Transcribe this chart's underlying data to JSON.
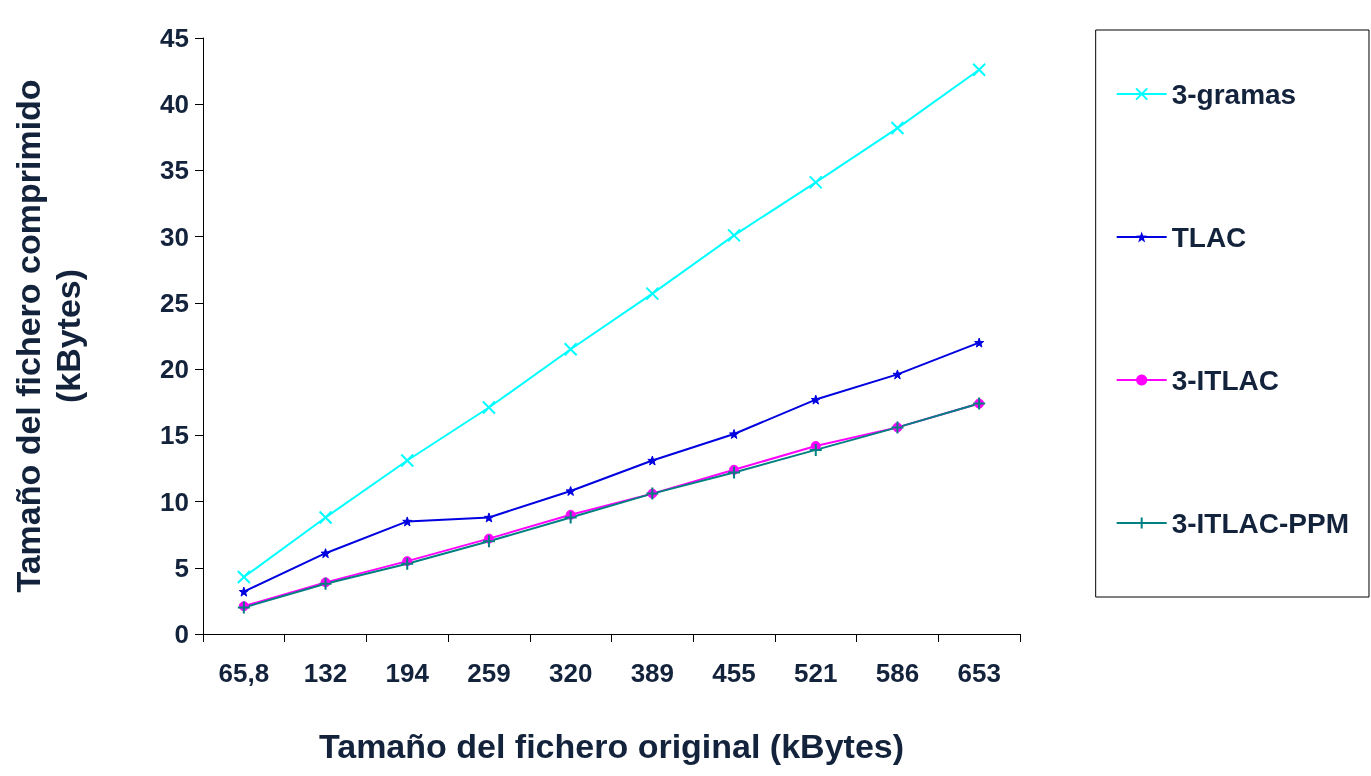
{
  "chart_data": {
    "type": "line",
    "xlabel": "Tamaño del fichero original (kBytes)",
    "ylabel": "Tamaño del fichero comprimido\n(kBytes)",
    "categories": [
      "65,8",
      "132",
      "194",
      "259",
      "320",
      "389",
      "455",
      "521",
      "586",
      "653"
    ],
    "series": [
      {
        "name": "3-gramas",
        "color": "#00ffff",
        "marker": "cross",
        "values": [
          4.3,
          8.8,
          13.1,
          17.1,
          21.5,
          25.7,
          30.1,
          34.1,
          38.2,
          42.6
        ]
      },
      {
        "name": "TLAC",
        "color": "#0000e0",
        "marker": "star",
        "values": [
          3.2,
          6.1,
          8.5,
          8.8,
          10.8,
          13.1,
          15.1,
          17.7,
          19.6,
          22.0
        ]
      },
      {
        "name": "3-ITLAC",
        "color": "#ff00ff",
        "marker": "circle",
        "values": [
          2.1,
          3.9,
          5.5,
          7.2,
          9.0,
          10.6,
          12.4,
          14.2,
          15.6,
          17.4
        ]
      },
      {
        "name": "3-ITLAC-PPM",
        "color": "#008080",
        "marker": "plus",
        "values": [
          2.0,
          3.8,
          5.3,
          7.0,
          8.8,
          10.6,
          12.2,
          13.9,
          15.6,
          17.4
        ]
      }
    ],
    "ylim": [
      0,
      45
    ],
    "yticks": [
      0,
      5,
      10,
      15,
      20,
      25,
      30,
      35,
      40,
      45
    ],
    "grid": false,
    "legend": "right",
    "line_style": "solid"
  }
}
